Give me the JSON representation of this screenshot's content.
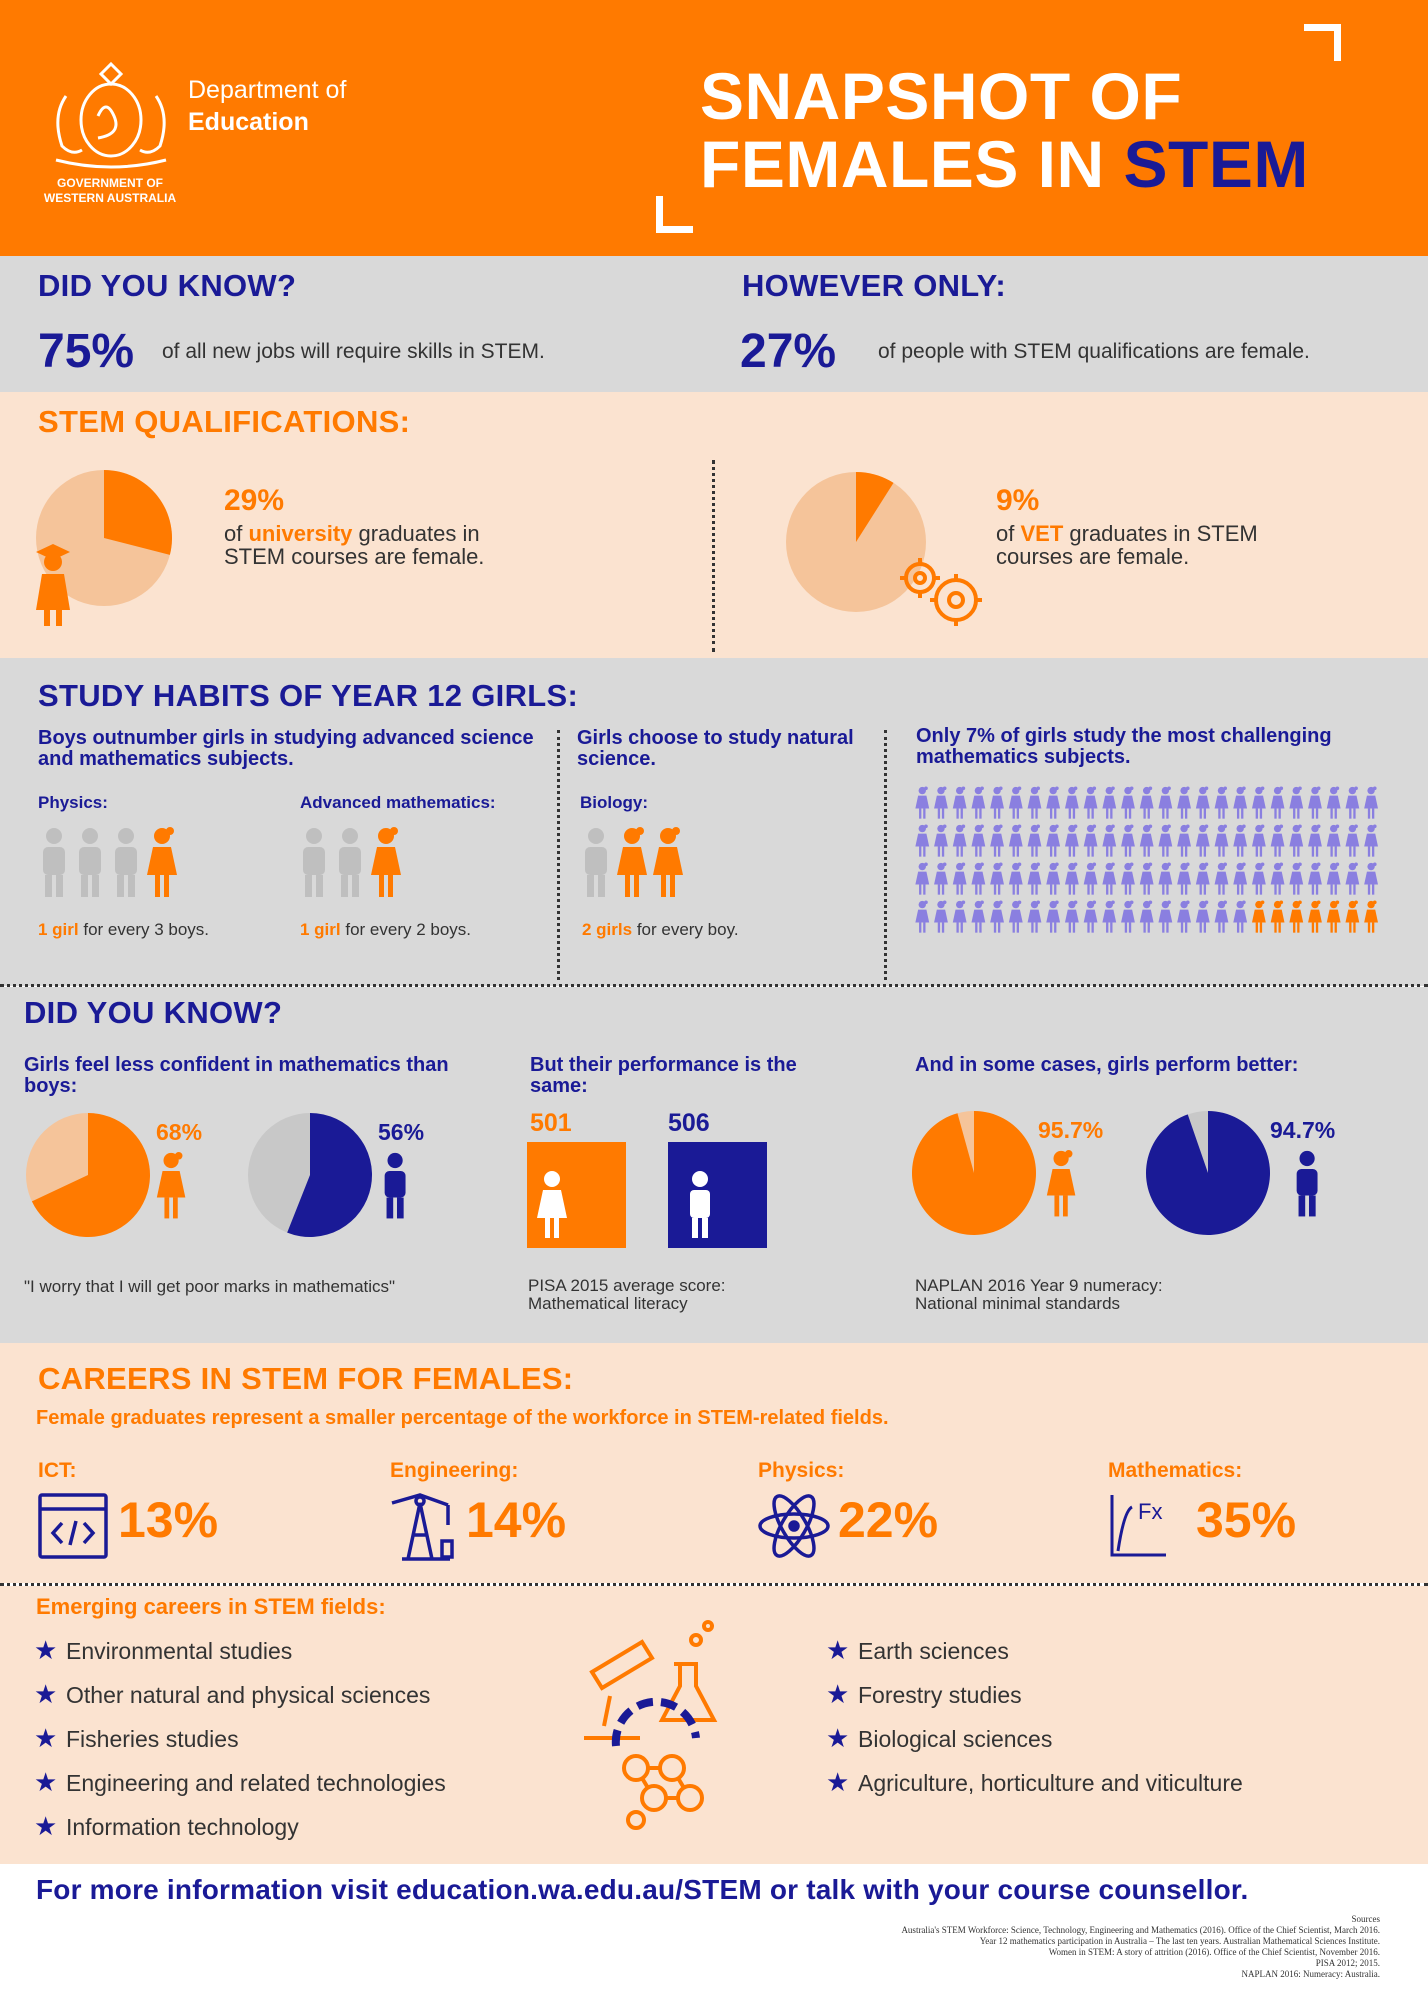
{
  "header": {
    "dept_line1": "Department of",
    "dept_line2": "Education",
    "gov_line1": "GOVERNMENT OF",
    "gov_line2": "WESTERN AUSTRALIA",
    "title_line1": "SNAPSHOT OF",
    "title_line2_a": "FEMALES IN ",
    "title_line2_b": "STEM"
  },
  "did_you_know_1": {
    "heading": "DID YOU KNOW?",
    "stat": "75%",
    "text": "of all new jobs will require skills in STEM."
  },
  "however": {
    "heading": "HOWEVER ONLY:",
    "stat": "27%",
    "text": "of people with STEM qualifications are female."
  },
  "qualifications": {
    "heading": "STEM QUALIFICATIONS:",
    "uni": {
      "pct": "29%",
      "pre": "of ",
      "highlight": "university",
      "post": " graduates in",
      "line2": "STEM courses are female.",
      "fraction": 0.29
    },
    "vet": {
      "pct": "9%",
      "pre": "of ",
      "highlight": "VET",
      "post": " graduates in STEM",
      "line2": "courses are female.",
      "fraction": 0.09
    }
  },
  "study_habits": {
    "heading": "STUDY HABITS OF YEAR 12 GIRLS:",
    "col1_title": "Boys outnumber girls in studying advanced science and mathematics subjects.",
    "physics_label": "Physics:",
    "physics_girl": "1 girl",
    "physics_rest": " for every 3 boys.",
    "adv_label": "Advanced mathematics:",
    "adv_girl": "1 girl",
    "adv_rest": " for every 2 boys.",
    "col2_title": "Girls choose to study natural science.",
    "biology_label": "Biology:",
    "bio_girls": "2 girls",
    "bio_rest": " for every boy.",
    "col3_title": "Only 7% of girls study the most challenging mathematics subjects.",
    "grid_fraction": 0.07
  },
  "did_you_know_2": {
    "heading": "DID YOU KNOW?",
    "conf_title": "Girls feel less confident in mathematics than boys:",
    "girls_conf": "68%",
    "boys_conf": "56%",
    "girls_conf_val": 0.68,
    "boys_conf_val": 0.56,
    "quote": "\"I worry that I will get poor marks in mathematics\"",
    "perf_title": "But their performance is the same:",
    "girls_score": "501",
    "boys_score": "506",
    "pisa_line1": "PISA 2015 average score:",
    "pisa_line2": "Mathematical literacy",
    "better_title": "And in some cases, girls perform better:",
    "girls_naplan": "95.7%",
    "boys_naplan": "94.7%",
    "girls_naplan_val": 0.957,
    "boys_naplan_val": 0.947,
    "naplan_line1": "NAPLAN 2016 Year 9 numeracy:",
    "naplan_line2": "National minimal standards"
  },
  "careers": {
    "heading": "CAREERS IN STEM FOR FEMALES:",
    "subheading": "Female graduates represent a smaller percentage of the workforce in STEM-related fields.",
    "fields": [
      {
        "label": "ICT:",
        "pct": "13%",
        "icon": "code-window-icon"
      },
      {
        "label": "Engineering:",
        "pct": "14%",
        "icon": "oil-pump-icon"
      },
      {
        "label": "Physics:",
        "pct": "22%",
        "icon": "atom-icon"
      },
      {
        "label": "Mathematics:",
        "pct": "35%",
        "icon": "function-graph-icon"
      }
    ]
  },
  "emerging": {
    "heading": "Emerging careers in STEM fields:",
    "left": [
      "Environmental studies",
      "Other natural and physical sciences",
      "Fisheries studies",
      "Engineering and related technologies",
      "Information technology"
    ],
    "right": [
      "Earth sciences",
      "Forestry studies",
      "Biological sciences",
      "Agriculture, horticulture and viticulture"
    ]
  },
  "footer": {
    "cta": "For more information visit education.wa.edu.au/STEM or talk with your course counsellor.",
    "sources_title": "Sources",
    "sources": [
      "Australia's STEM Workforce: Science, Technology, Engineering and Mathematics (2016). Office of the Chief Scientist, March 2016.",
      "Year 12 mathematics participation in Australia – The last ten years. Australian Mathematical Sciences Institute.",
      "Women in STEM: A story of attrition (2016). Office of the Chief Scientist, November 2016.",
      "PISA 2012; 2015.",
      "NAPLAN 2016: Numeracy: Australia."
    ]
  },
  "colors": {
    "orange": "#ff7a00",
    "navy": "#1a1a96",
    "peach": "#f5c49a",
    "grey": "#c8c8c8",
    "purple": "#8a7fe0"
  }
}
